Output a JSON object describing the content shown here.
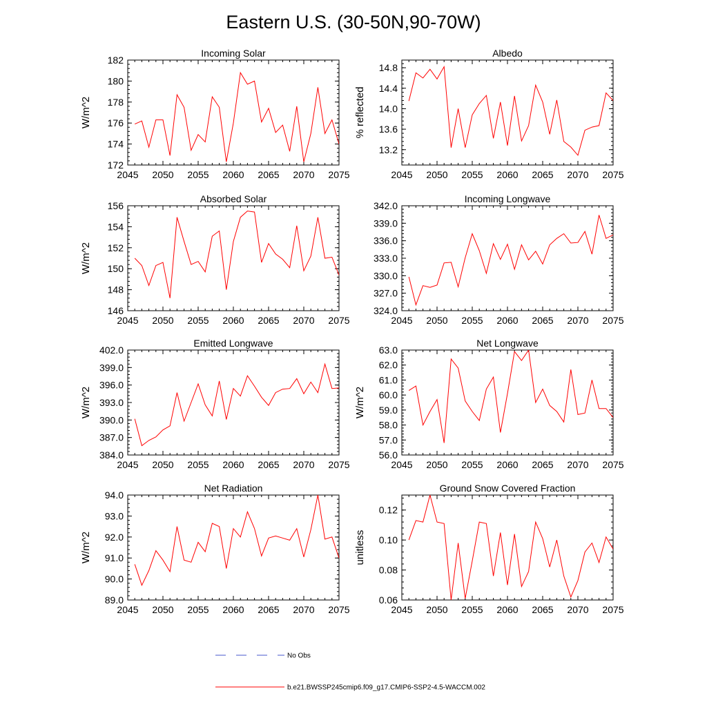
{
  "title": "Eastern U.S. (30-50N,90-70W)",
  "colors": {
    "model": "#ff0000",
    "obs": "#4455cc",
    "axis": "#000000"
  },
  "legend": {
    "obs_label": "No Obs",
    "model_label": "b.e21.BWSSP245cmip6.f09_g17.CMIP6-SSP2-4.5-WACCM.002"
  },
  "chart_data": [
    {
      "type": "line",
      "title": "Incoming Solar",
      "xlabel": "",
      "ylabel": "W/m^2",
      "xlim": [
        2045,
        2075
      ],
      "ylim": [
        172,
        182
      ],
      "xticks": [
        2045,
        2050,
        2055,
        2060,
        2065,
        2070,
        2075
      ],
      "xtick_labels": [
        "2045",
        "2050",
        "2055",
        "2060",
        "2065",
        "2070",
        "2075"
      ],
      "yticks": [
        172,
        174,
        176,
        178,
        180,
        182
      ],
      "ytick_labels": [
        "172",
        "174",
        "176",
        "178",
        "180",
        "182"
      ],
      "x": [
        2046,
        2047,
        2048,
        2049,
        2050,
        2051,
        2052,
        2053,
        2054,
        2055,
        2056,
        2057,
        2058,
        2059,
        2060,
        2061,
        2062,
        2063,
        2064,
        2065,
        2066,
        2067,
        2068,
        2069,
        2070,
        2071,
        2072,
        2073,
        2074,
        2075
      ],
      "values": [
        175.9,
        176.2,
        173.7,
        176.3,
        176.3,
        172.9,
        178.7,
        177.5,
        173.4,
        174.9,
        174.2,
        178.5,
        177.5,
        172.3,
        176.0,
        180.8,
        179.7,
        180.0,
        176.1,
        177.4,
        175.1,
        175.8,
        173.3,
        177.6,
        172.3,
        175.0,
        179.4,
        175.0,
        176.3,
        174.0
      ]
    },
    {
      "type": "line",
      "title": "Albedo",
      "xlabel": "",
      "ylabel": "% reflected",
      "xlim": [
        2045,
        2075
      ],
      "ylim": [
        12.9,
        14.95
      ],
      "xticks": [
        2045,
        2050,
        2055,
        2060,
        2065,
        2070,
        2075
      ],
      "xtick_labels": [
        "2045",
        "2050",
        "2055",
        "2060",
        "2065",
        "2070",
        "2075"
      ],
      "yticks": [
        13.2,
        13.6,
        14.0,
        14.4,
        14.8
      ],
      "ytick_labels": [
        "13.2",
        "13.6",
        "14.0",
        "14.4",
        "14.8"
      ],
      "x": [
        2046,
        2047,
        2048,
        2049,
        2050,
        2051,
        2052,
        2053,
        2054,
        2055,
        2056,
        2057,
        2058,
        2059,
        2060,
        2061,
        2062,
        2063,
        2064,
        2065,
        2066,
        2067,
        2068,
        2069,
        2070,
        2071,
        2072,
        2073,
        2074,
        2075
      ],
      "values": [
        14.15,
        14.7,
        14.6,
        14.77,
        14.58,
        14.82,
        13.24,
        14.0,
        13.24,
        13.88,
        14.1,
        14.26,
        13.42,
        14.13,
        13.28,
        14.25,
        13.37,
        13.67,
        14.46,
        14.13,
        13.5,
        14.17,
        13.36,
        13.25,
        13.09,
        13.58,
        13.64,
        13.67,
        14.31,
        14.16
      ]
    },
    {
      "type": "line",
      "title": "Absorbed Solar",
      "xlabel": "",
      "ylabel": "W/m^2",
      "xlim": [
        2045,
        2075
      ],
      "ylim": [
        146,
        156
      ],
      "xticks": [
        2045,
        2050,
        2055,
        2060,
        2065,
        2070,
        2075
      ],
      "xtick_labels": [
        "2045",
        "2050",
        "2055",
        "2060",
        "2065",
        "2070",
        "2075"
      ],
      "yticks": [
        146,
        148,
        150,
        152,
        154,
        156
      ],
      "ytick_labels": [
        "146",
        "148",
        "150",
        "152",
        "154",
        "156"
      ],
      "x": [
        2046,
        2047,
        2048,
        2049,
        2050,
        2051,
        2052,
        2053,
        2054,
        2055,
        2056,
        2057,
        2058,
        2059,
        2060,
        2061,
        2062,
        2063,
        2064,
        2065,
        2066,
        2067,
        2068,
        2069,
        2070,
        2071,
        2072,
        2073,
        2074,
        2075
      ],
      "values": [
        151.0,
        150.3,
        148.4,
        150.3,
        150.6,
        147.2,
        154.9,
        152.6,
        150.4,
        150.7,
        149.7,
        153.1,
        153.6,
        148.0,
        152.6,
        154.9,
        155.5,
        155.4,
        150.6,
        152.4,
        151.4,
        150.9,
        150.1,
        154.1,
        149.8,
        151.2,
        154.9,
        151.0,
        151.1,
        149.4
      ]
    },
    {
      "type": "line",
      "title": "Incoming Longwave",
      "xlabel": "",
      "ylabel": "",
      "xlim": [
        2045,
        2075
      ],
      "ylim": [
        324,
        342
      ],
      "xticks": [
        2045,
        2050,
        2055,
        2060,
        2065,
        2070,
        2075
      ],
      "xtick_labels": [
        "2045",
        "2050",
        "2055",
        "2060",
        "2065",
        "2070",
        "2075"
      ],
      "yticks": [
        324,
        327,
        330,
        333,
        336,
        339,
        342
      ],
      "ytick_labels": [
        "324.0",
        "327.0",
        "330.0",
        "333.0",
        "336.0",
        "339.0",
        "342.0"
      ],
      "x": [
        2046,
        2047,
        2048,
        2049,
        2050,
        2051,
        2052,
        2053,
        2054,
        2055,
        2056,
        2057,
        2058,
        2059,
        2060,
        2061,
        2062,
        2063,
        2064,
        2065,
        2066,
        2067,
        2068,
        2069,
        2070,
        2071,
        2072,
        2073,
        2074,
        2075
      ],
      "values": [
        329.8,
        325.0,
        328.3,
        328.0,
        328.4,
        332.2,
        332.3,
        328.1,
        333.1,
        337.2,
        334.3,
        330.4,
        335.5,
        332.8,
        335.4,
        331.1,
        335.3,
        332.7,
        334.2,
        332.0,
        335.3,
        336.4,
        337.2,
        335.6,
        335.7,
        337.6,
        333.7,
        340.4,
        336.4,
        337.0
      ]
    },
    {
      "type": "line",
      "title": "Emitted Longwave",
      "xlabel": "",
      "ylabel": "W/m^2",
      "xlim": [
        2045,
        2075
      ],
      "ylim": [
        384,
        402
      ],
      "xticks": [
        2045,
        2050,
        2055,
        2060,
        2065,
        2070,
        2075
      ],
      "xtick_labels": [
        "2045",
        "2050",
        "2055",
        "2060",
        "2065",
        "2070",
        "2075"
      ],
      "yticks": [
        384,
        387,
        390,
        393,
        396,
        399,
        402
      ],
      "ytick_labels": [
        "384.0",
        "387.0",
        "390.0",
        "393.0",
        "396.0",
        "399.0",
        "402.0"
      ],
      "x": [
        2046,
        2047,
        2048,
        2049,
        2050,
        2051,
        2052,
        2053,
        2054,
        2055,
        2056,
        2057,
        2058,
        2059,
        2060,
        2061,
        2062,
        2063,
        2064,
        2065,
        2066,
        2067,
        2068,
        2069,
        2070,
        2071,
        2072,
        2073,
        2074,
        2075
      ],
      "values": [
        390.2,
        385.6,
        386.5,
        387.1,
        388.3,
        389.0,
        394.7,
        389.8,
        393.0,
        396.2,
        392.6,
        390.7,
        396.7,
        390.1,
        395.4,
        394.1,
        397.6,
        395.8,
        393.9,
        392.5,
        394.7,
        395.3,
        395.4,
        397.1,
        394.5,
        396.5,
        394.7,
        399.6,
        395.4,
        395.5
      ]
    },
    {
      "type": "line",
      "title": "Net Longwave",
      "xlabel": "",
      "ylabel": "W/m^2",
      "xlim": [
        2045,
        2075
      ],
      "ylim": [
        56,
        63
      ],
      "xticks": [
        2045,
        2050,
        2055,
        2060,
        2065,
        2070,
        2075
      ],
      "xtick_labels": [
        "2045",
        "2050",
        "2055",
        "2060",
        "2065",
        "2070",
        "2075"
      ],
      "yticks": [
        56,
        57,
        58,
        59,
        60,
        61,
        62,
        63
      ],
      "ytick_labels": [
        "56.0",
        "57.0",
        "58.0",
        "59.0",
        "60.0",
        "61.0",
        "62.0",
        "63.0"
      ],
      "x": [
        2046,
        2047,
        2048,
        2049,
        2050,
        2051,
        2052,
        2053,
        2054,
        2055,
        2056,
        2057,
        2058,
        2059,
        2060,
        2061,
        2062,
        2063,
        2064,
        2065,
        2066,
        2067,
        2068,
        2069,
        2070,
        2071,
        2072,
        2073,
        2074,
        2075
      ],
      "values": [
        60.3,
        60.6,
        58.0,
        58.9,
        59.7,
        56.8,
        62.4,
        61.8,
        59.6,
        58.9,
        58.3,
        60.4,
        61.2,
        57.5,
        60.1,
        62.9,
        62.3,
        63.0,
        59.5,
        60.4,
        59.3,
        58.9,
        58.2,
        61.7,
        58.7,
        58.8,
        61.0,
        59.1,
        59.1,
        58.5
      ]
    },
    {
      "type": "line",
      "title": "Net Radiation",
      "xlabel": "",
      "ylabel": "W/m^2",
      "xlim": [
        2045,
        2075
      ],
      "ylim": [
        89,
        94
      ],
      "xticks": [
        2045,
        2050,
        2055,
        2060,
        2065,
        2070,
        2075
      ],
      "xtick_labels": [
        "2045",
        "2050",
        "2055",
        "2060",
        "2065",
        "2070",
        "2075"
      ],
      "yticks": [
        89,
        90,
        91,
        92,
        93,
        94
      ],
      "ytick_labels": [
        "89.0",
        "90.0",
        "91.0",
        "92.0",
        "93.0",
        "94.0"
      ],
      "x": [
        2046,
        2047,
        2048,
        2049,
        2050,
        2051,
        2052,
        2053,
        2054,
        2055,
        2056,
        2057,
        2058,
        2059,
        2060,
        2061,
        2062,
        2063,
        2064,
        2065,
        2066,
        2067,
        2068,
        2069,
        2070,
        2071,
        2072,
        2073,
        2074,
        2075
      ],
      "values": [
        90.7,
        89.7,
        90.4,
        91.35,
        90.9,
        90.35,
        92.5,
        90.9,
        90.8,
        91.75,
        91.3,
        92.65,
        92.5,
        90.5,
        92.4,
        92.0,
        93.2,
        92.4,
        91.1,
        91.95,
        92.05,
        91.95,
        91.85,
        92.4,
        91.05,
        92.35,
        94.0,
        91.9,
        92.0,
        91.0
      ]
    },
    {
      "type": "line",
      "title": "Ground Snow Covered Fraction",
      "xlabel": "",
      "ylabel": "unitless",
      "xlim": [
        2045,
        2075
      ],
      "ylim": [
        0.06,
        0.13
      ],
      "xticks": [
        2045,
        2050,
        2055,
        2060,
        2065,
        2070,
        2075
      ],
      "xtick_labels": [
        "2045",
        "2050",
        "2055",
        "2060",
        "2065",
        "2070",
        "2075"
      ],
      "yticks": [
        0.06,
        0.08,
        0.1,
        0.12
      ],
      "ytick_labels": [
        "0.06",
        "0.08",
        "0.10",
        "0.12"
      ],
      "x": [
        2046,
        2047,
        2048,
        2049,
        2050,
        2051,
        2052,
        2053,
        2054,
        2055,
        2056,
        2057,
        2058,
        2059,
        2060,
        2061,
        2062,
        2063,
        2064,
        2065,
        2066,
        2067,
        2068,
        2069,
        2070,
        2071,
        2072,
        2073,
        2074,
        2075
      ],
      "values": [
        0.1,
        0.113,
        0.112,
        0.13,
        0.112,
        0.111,
        0.06,
        0.098,
        0.061,
        0.086,
        0.112,
        0.111,
        0.076,
        0.105,
        0.07,
        0.104,
        0.069,
        0.079,
        0.112,
        0.101,
        0.082,
        0.1,
        0.076,
        0.062,
        0.073,
        0.092,
        0.098,
        0.085,
        0.102,
        0.094
      ]
    }
  ]
}
